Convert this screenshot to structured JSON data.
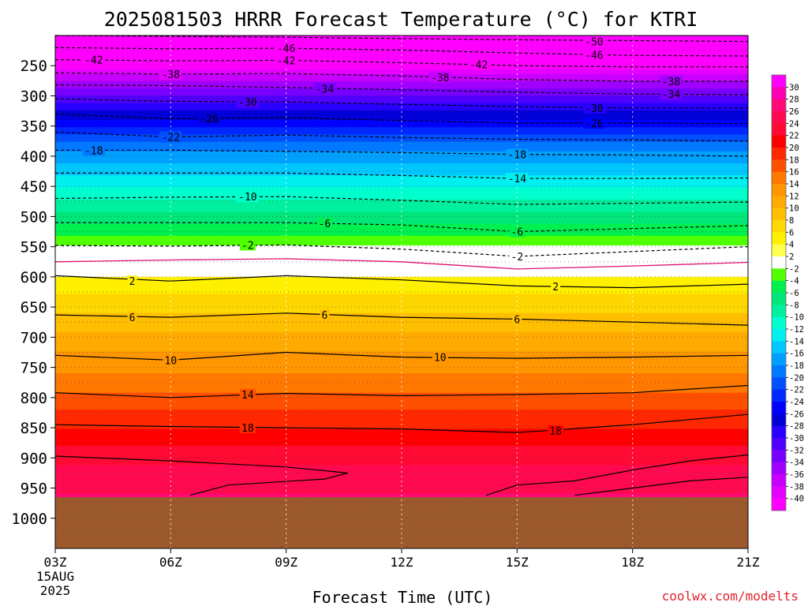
{
  "chart_data": {
    "type": "heatmap",
    "title": "2025081503 HRRR Forecast Temperature (°C) for KTRI",
    "xlabel": "Forecast Time (UTC)",
    "ylabel": "",
    "credit": "coolwx.com/modelts",
    "x_ticks": [
      "03Z",
      "06Z",
      "09Z",
      "12Z",
      "15Z",
      "18Z",
      "21Z"
    ],
    "x_tick_hours": [
      3,
      6,
      9,
      12,
      15,
      18,
      21
    ],
    "x_start_label": [
      "15AUG",
      "2025"
    ],
    "xlim": [
      3,
      21
    ],
    "y_ticks": [
      250,
      300,
      350,
      400,
      450,
      500,
      550,
      600,
      650,
      700,
      750,
      800,
      850,
      900,
      950,
      1000
    ],
    "ylim": [
      200,
      1050
    ],
    "surface_pressure": 965,
    "ground_color": "#9c5a2c",
    "colorbar": {
      "labels": [
        30,
        28,
        26,
        24,
        22,
        20,
        18,
        16,
        14,
        12,
        10,
        8,
        6,
        4,
        2,
        -2,
        -4,
        -6,
        -8,
        -10,
        -12,
        -14,
        -16,
        -18,
        -20,
        -22,
        -24,
        -26,
        -28,
        -30,
        -32,
        -34,
        -36,
        -38,
        -40
      ],
      "colors": [
        "#ff00ff",
        "#ff00b4",
        "#ff0a78",
        "#ff0a50",
        "#ff0a32",
        "#ff0000",
        "#ff2800",
        "#ff5000",
        "#ff7800",
        "#ff9600",
        "#ffaa00",
        "#ffbe00",
        "#ffd700",
        "#fff000",
        "#ffff50",
        "#ffffff",
        "#50ff00",
        "#00f050",
        "#00e678",
        "#00f0a0",
        "#00ffcc",
        "#00f0f0",
        "#00c8ff",
        "#00a0ff",
        "#0078ff",
        "#0050ff",
        "#0028ff",
        "#0000ff",
        "#0000d7",
        "#2800ff",
        "#5000ff",
        "#7800ff",
        "#a000ff",
        "#c800ff",
        "#e600ff",
        "#ff00ff"
      ]
    },
    "temperature_profile": [
      {
        "p": 200,
        "t": -52
      },
      {
        "p": 215,
        "t": -49
      },
      {
        "p": 235,
        "t": -44
      },
      {
        "p": 255,
        "t": -40
      },
      {
        "p": 275,
        "t": -36
      },
      {
        "p": 300,
        "t": -32
      },
      {
        "p": 325,
        "t": -28
      },
      {
        "p": 345,
        "t": -25
      },
      {
        "p": 365,
        "t": -22
      },
      {
        "p": 390,
        "t": -18
      },
      {
        "p": 420,
        "t": -15
      },
      {
        "p": 460,
        "t": -11
      },
      {
        "p": 500,
        "t": -7
      },
      {
        "p": 530,
        "t": -4
      },
      {
        "p": 548,
        "t": -2
      },
      {
        "p": 575,
        "t": 0
      },
      {
        "p": 600,
        "t": 2
      },
      {
        "p": 650,
        "t": 5.5
      },
      {
        "p": 700,
        "t": 8.5
      },
      {
        "p": 750,
        "t": 11.5
      },
      {
        "p": 800,
        "t": 14.5
      },
      {
        "p": 850,
        "t": 18
      },
      {
        "p": 900,
        "t": 21.5
      },
      {
        "p": 950,
        "t": 23.5
      },
      {
        "p": 1000,
        "t": 26
      }
    ],
    "contours": [
      {
        "label": "-50",
        "style": "dashed",
        "points": [
          [
            3,
            200
          ],
          [
            9,
            203
          ],
          [
            15,
            207
          ],
          [
            21,
            210
          ]
        ],
        "labels_at": [
          [
            17.0,
            210
          ]
        ]
      },
      {
        "label": "-46",
        "style": "dashed",
        "points": [
          [
            3,
            220
          ],
          [
            6,
            222
          ],
          [
            9,
            221
          ],
          [
            12,
            224
          ],
          [
            15,
            229
          ],
          [
            18,
            233
          ],
          [
            21,
            234
          ]
        ],
        "labels_at": [
          [
            9.0,
            221
          ],
          [
            17.0,
            232
          ]
        ]
      },
      {
        "label": "-42",
        "style": "dashed",
        "points": [
          [
            3,
            240
          ],
          [
            6,
            242
          ],
          [
            9,
            241
          ],
          [
            12,
            245
          ],
          [
            15,
            250
          ],
          [
            18,
            252
          ],
          [
            21,
            252
          ]
        ],
        "labels_at": [
          [
            4.0,
            240
          ],
          [
            9.0,
            241
          ],
          [
            14.0,
            248
          ]
        ]
      },
      {
        "label": "-38",
        "style": "dashed",
        "points": [
          [
            3,
            262
          ],
          [
            6,
            264
          ],
          [
            9,
            263
          ],
          [
            12,
            267
          ],
          [
            15,
            273
          ],
          [
            18,
            276
          ],
          [
            21,
            276
          ]
        ],
        "labels_at": [
          [
            6.0,
            264
          ],
          [
            13.0,
            269
          ],
          [
            19.0,
            276
          ]
        ]
      },
      {
        "label": "-34",
        "style": "dashed",
        "points": [
          [
            3,
            282
          ],
          [
            6,
            283
          ],
          [
            9,
            286
          ],
          [
            12,
            290
          ],
          [
            15,
            294
          ],
          [
            18,
            297
          ],
          [
            21,
            298
          ]
        ],
        "labels_at": [
          [
            10.0,
            288
          ],
          [
            19.0,
            297
          ]
        ]
      },
      {
        "label": "-30",
        "style": "dashed",
        "points": [
          [
            3,
            305
          ],
          [
            6,
            309
          ],
          [
            9,
            310
          ],
          [
            12,
            314
          ],
          [
            15,
            318
          ],
          [
            18,
            320
          ],
          [
            21,
            320
          ]
        ],
        "labels_at": [
          [
            8.0,
            310
          ],
          [
            17.0,
            320
          ]
        ]
      },
      {
        "label": "-26",
        "style": "dashed",
        "points": [
          [
            3,
            330
          ],
          [
            6,
            338
          ],
          [
            9,
            336
          ],
          [
            12,
            341
          ],
          [
            15,
            345
          ],
          [
            18,
            345
          ],
          [
            21,
            346
          ]
        ],
        "labels_at": [
          [
            7.0,
            337
          ],
          [
            17.0,
            345
          ]
        ]
      },
      {
        "label": "-22",
        "style": "dashed",
        "points": [
          [
            3,
            360
          ],
          [
            6,
            368
          ],
          [
            9,
            365
          ],
          [
            12,
            369
          ],
          [
            15,
            372
          ],
          [
            18,
            373
          ],
          [
            21,
            375
          ]
        ],
        "labels_at": [
          [
            6.0,
            368
          ]
        ]
      },
      {
        "label": "-18",
        "style": "dashed",
        "points": [
          [
            3,
            390
          ],
          [
            6,
            390
          ],
          [
            9,
            392
          ],
          [
            12,
            394
          ],
          [
            15,
            397
          ],
          [
            18,
            398
          ],
          [
            21,
            400
          ]
        ],
        "labels_at": [
          [
            4.0,
            390
          ],
          [
            15.0,
            397
          ]
        ]
      },
      {
        "label": "-14",
        "style": "dashed",
        "points": [
          [
            3,
            428
          ],
          [
            6,
            428
          ],
          [
            9,
            428
          ],
          [
            12,
            432
          ],
          [
            15,
            437
          ],
          [
            18,
            437
          ],
          [
            21,
            436
          ]
        ],
        "labels_at": [
          [
            15.0,
            437
          ]
        ]
      },
      {
        "label": "-10",
        "style": "dashed",
        "points": [
          [
            3,
            470
          ],
          [
            6,
            468
          ],
          [
            9,
            467
          ],
          [
            12,
            473
          ],
          [
            15,
            480
          ],
          [
            18,
            478
          ],
          [
            21,
            476
          ]
        ],
        "labels_at": [
          [
            8.0,
            467
          ]
        ]
      },
      {
        "label": "-6",
        "style": "dashed",
        "points": [
          [
            3,
            510
          ],
          [
            6,
            510
          ],
          [
            9,
            510
          ],
          [
            12,
            514
          ],
          [
            15,
            525
          ],
          [
            18,
            520
          ],
          [
            21,
            515
          ]
        ],
        "labels_at": [
          [
            10.0,
            511
          ],
          [
            15.0,
            525
          ]
        ]
      },
      {
        "label": "-2",
        "style": "dashed",
        "points": [
          [
            3,
            548
          ],
          [
            6,
            549
          ],
          [
            9,
            547
          ],
          [
            12,
            554
          ],
          [
            15,
            566
          ],
          [
            18,
            558
          ],
          [
            21,
            550
          ]
        ],
        "labels_at": [
          [
            8.0,
            547
          ],
          [
            15.0,
            566
          ]
        ]
      },
      {
        "label": "0",
        "style": "magenta",
        "points": [
          [
            3,
            575
          ],
          [
            6,
            572
          ],
          [
            9,
            570
          ],
          [
            12,
            575
          ],
          [
            15,
            587
          ],
          [
            18,
            582
          ],
          [
            21,
            576
          ]
        ],
        "labels_at": []
      },
      {
        "label": "2",
        "style": "solid",
        "points": [
          [
            3,
            598
          ],
          [
            6,
            607
          ],
          [
            9,
            598
          ],
          [
            12,
            605
          ],
          [
            15,
            615
          ],
          [
            18,
            618
          ],
          [
            21,
            612
          ]
        ],
        "labels_at": [
          [
            5.0,
            607
          ],
          [
            16.0,
            616
          ]
        ]
      },
      {
        "label": "6",
        "style": "solid",
        "points": [
          [
            3,
            663
          ],
          [
            6,
            667
          ],
          [
            9,
            660
          ],
          [
            12,
            667
          ],
          [
            15,
            670
          ],
          [
            18,
            675
          ],
          [
            21,
            680
          ]
        ],
        "labels_at": [
          [
            5.0,
            667
          ],
          [
            10.0,
            663
          ],
          [
            15.0,
            670
          ]
        ]
      },
      {
        "label": "10",
        "style": "solid",
        "points": [
          [
            3,
            730
          ],
          [
            6,
            738
          ],
          [
            9,
            725
          ],
          [
            12,
            733
          ],
          [
            15,
            735
          ],
          [
            18,
            733
          ],
          [
            21,
            730
          ]
        ],
        "labels_at": [
          [
            6.0,
            738
          ],
          [
            13.0,
            733
          ]
        ]
      },
      {
        "label": "14",
        "style": "solid",
        "points": [
          [
            3,
            792
          ],
          [
            6,
            800
          ],
          [
            9,
            793
          ],
          [
            12,
            797
          ],
          [
            15,
            795
          ],
          [
            18,
            792
          ],
          [
            21,
            780
          ]
        ],
        "labels_at": [
          [
            8.0,
            795
          ]
        ]
      },
      {
        "label": "18",
        "style": "solid",
        "points": [
          [
            3,
            845
          ],
          [
            6,
            848
          ],
          [
            9,
            850
          ],
          [
            12,
            852
          ],
          [
            15,
            858
          ],
          [
            18,
            845
          ],
          [
            21,
            828
          ]
        ],
        "labels_at": [
          [
            8.0,
            850
          ],
          [
            16.0,
            855
          ]
        ]
      },
      {
        "label": "22",
        "style": "solid",
        "points": [
          [
            3,
            897
          ],
          [
            6,
            905
          ],
          [
            9,
            915
          ],
          [
            10.6,
            925
          ],
          [
            10,
            935
          ],
          [
            7.5,
            945
          ],
          [
            6.5,
            962
          ]
        ],
        "labels_at": []
      },
      {
        "label": "22b",
        "style": "solid",
        "points": [
          [
            14.2,
            962
          ],
          [
            15,
            945
          ],
          [
            16.5,
            938
          ],
          [
            18,
            920
          ],
          [
            19.5,
            905
          ],
          [
            21,
            895
          ]
        ],
        "labels_at": []
      },
      {
        "label": "22c",
        "style": "solid",
        "points": [
          [
            16.5,
            962
          ],
          [
            18,
            950
          ],
          [
            19.5,
            938
          ],
          [
            21,
            932
          ]
        ],
        "labels_at": []
      }
    ]
  }
}
